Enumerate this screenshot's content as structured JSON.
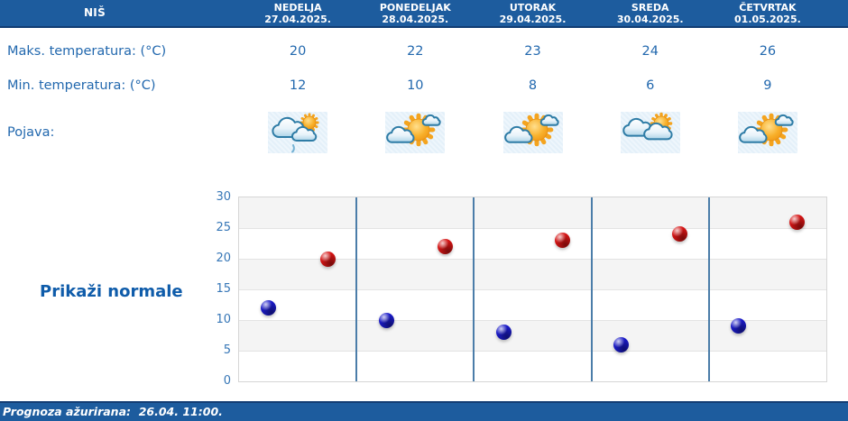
{
  "city": "NIŠ",
  "table": {
    "rows": {
      "max_label": "Maks. temperatura: (°C)",
      "min_label": "Min. temperatura: (°C)",
      "phenomena_label": "Pojava:"
    },
    "days": [
      {
        "name": "NEDELJA",
        "date": "27.04.2025.",
        "max": "20",
        "min": "12",
        "icon": "sun-cloud-rain-icon"
      },
      {
        "name": "PONEDELJAK",
        "date": "28.04.2025.",
        "max": "22",
        "min": "10",
        "icon": "sun-with-clouds-icon"
      },
      {
        "name": "UTORAK",
        "date": "29.04.2025.",
        "max": "23",
        "min": "8",
        "icon": "sun-with-clouds-icon"
      },
      {
        "name": "SREDA",
        "date": "30.04.2025.",
        "max": "24",
        "min": "6",
        "icon": "clouds-with-sun-icon"
      },
      {
        "name": "ČETVRTAK",
        "date": "01.05.2025.",
        "max": "26",
        "min": "9",
        "icon": "sun-with-clouds-icon"
      }
    ]
  },
  "normals_button": {
    "label": "Prikaži normale"
  },
  "chart_data": {
    "type": "scatter",
    "categories": [
      "NEDELJA",
      "PONEDELJAK",
      "UTORAK",
      "SREDA",
      "ČETVRTAK"
    ],
    "series": [
      {
        "name": "Maks. temperatura (°C)",
        "color": "#d61414",
        "values": [
          20,
          22,
          23,
          24,
          26
        ]
      },
      {
        "name": "Min. temperatura (°C)",
        "color": "#1a1ac8",
        "values": [
          12,
          10,
          8,
          6,
          9
        ]
      }
    ],
    "ylim": [
      0,
      30
    ],
    "yticks": [
      30,
      25,
      20,
      15,
      10,
      5,
      0
    ],
    "grid": true,
    "legend": "none",
    "band_colors": [
      "#f4f4f4",
      "#ffffff"
    ],
    "separator_color": "#4b7da9"
  },
  "status_bar": {
    "text": "Prognoza ažurirana:  26.04. 11:00."
  },
  "colors": {
    "header_bg": "#1d5c9e",
    "header_border": "#123d73",
    "table_text": "#2268ae",
    "link_text": "#0f5caa",
    "tick_text": "#3777b7"
  }
}
